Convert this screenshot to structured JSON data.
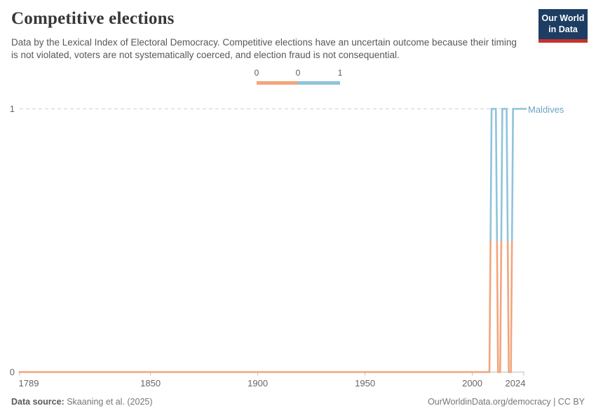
{
  "header": {
    "title": "Competitive elections",
    "subtitle": "Data by the Lexical Index of Electoral Democracy. Competitive elections have an uncertain outcome because their timing is not violated, voters are not systematically coerced, and election fraud is not consequential."
  },
  "logo": {
    "line1": "Our World",
    "line2": "in Data"
  },
  "legend": {
    "tick_labels": [
      "0",
      "0",
      "1"
    ],
    "bins": [
      {
        "label": "0",
        "color": "#f2a57c"
      },
      {
        "label": "1",
        "color": "#8fc3dc"
      }
    ]
  },
  "chart_data": {
    "type": "line",
    "title": "Competitive elections",
    "entity": "Maldives",
    "xlim": [
      1789,
      2024
    ],
    "ylim": [
      0,
      1
    ],
    "x_ticks": [
      1789,
      1850,
      1900,
      1950,
      2000,
      2024
    ],
    "y_ticks": [
      0,
      1
    ],
    "grid": "dashed gridline at y=1, solid axis at y=0",
    "legend_position": "top-center",
    "colors": {
      "value0": "#f2a57c",
      "value1": "#8fc3dc"
    },
    "series": [
      {
        "name": "Maldives",
        "segments": [
          {
            "start_year": 1789,
            "end_year": 2008,
            "value": 0
          },
          {
            "start_year": 2009,
            "end_year": 2011,
            "value": 1
          },
          {
            "start_year": 2012,
            "end_year": 2013,
            "value": 0
          },
          {
            "start_year": 2014,
            "end_year": 2016,
            "value": 1
          },
          {
            "start_year": 2017,
            "end_year": 2018,
            "value": 0
          },
          {
            "start_year": 2019,
            "end_year": 2024,
            "value": 1
          }
        ]
      }
    ]
  },
  "footer": {
    "source_prefix": "Data source:",
    "source": "Skaaning et al. (2025)",
    "credit": "OurWorldinData.org/democracy | CC BY"
  }
}
